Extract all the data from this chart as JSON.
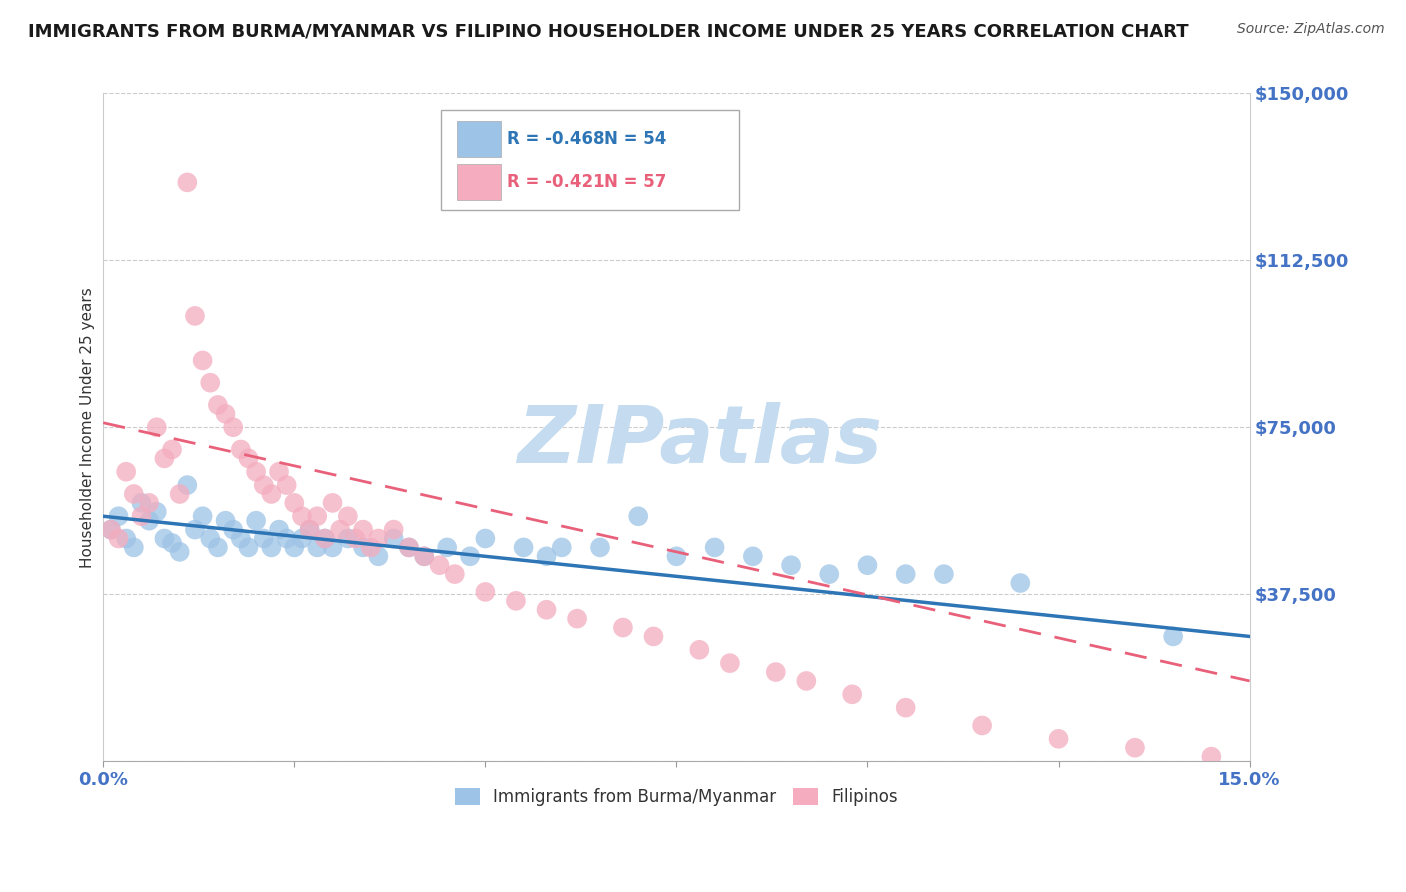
{
  "title": "IMMIGRANTS FROM BURMA/MYANMAR VS FILIPINO HOUSEHOLDER INCOME UNDER 25 YEARS CORRELATION CHART",
  "source_text": "Source: ZipAtlas.com",
  "ylabel": "Householder Income Under 25 years",
  "xlim": [
    0.0,
    0.15
  ],
  "ylim": [
    0,
    150000
  ],
  "yticks": [
    0,
    37500,
    75000,
    112500,
    150000
  ],
  "ytick_labels": [
    "",
    "$37,500",
    "$75,000",
    "$112,500",
    "$150,000"
  ],
  "legend_r1": "-0.468",
  "legend_n1": "54",
  "legend_r2": "-0.421",
  "legend_n2": "57",
  "color_blue": "#9DC3E6",
  "color_pink": "#F4ACBE",
  "color_blue_line": "#2E75B6",
  "color_pink_line": "#E8607A",
  "color_axis_label": "#4472C4",
  "watermark_color": "#C5DCF0",
  "grid_color": "#CCCCCC",
  "blue_x": [
    0.001,
    0.002,
    0.003,
    0.004,
    0.005,
    0.006,
    0.007,
    0.008,
    0.009,
    0.01,
    0.011,
    0.012,
    0.013,
    0.014,
    0.015,
    0.016,
    0.017,
    0.018,
    0.019,
    0.02,
    0.021,
    0.022,
    0.023,
    0.024,
    0.025,
    0.026,
    0.027,
    0.028,
    0.029,
    0.03,
    0.032,
    0.034,
    0.036,
    0.038,
    0.04,
    0.042,
    0.045,
    0.048,
    0.05,
    0.055,
    0.058,
    0.06,
    0.065,
    0.07,
    0.075,
    0.08,
    0.085,
    0.09,
    0.095,
    0.1,
    0.105,
    0.11,
    0.12,
    0.14
  ],
  "blue_y": [
    52000,
    55000,
    50000,
    48000,
    58000,
    54000,
    56000,
    50000,
    49000,
    47000,
    62000,
    52000,
    55000,
    50000,
    48000,
    54000,
    52000,
    50000,
    48000,
    54000,
    50000,
    48000,
    52000,
    50000,
    48000,
    50000,
    52000,
    48000,
    50000,
    48000,
    50000,
    48000,
    46000,
    50000,
    48000,
    46000,
    48000,
    46000,
    50000,
    48000,
    46000,
    48000,
    48000,
    55000,
    46000,
    48000,
    46000,
    44000,
    42000,
    44000,
    42000,
    42000,
    40000,
    28000
  ],
  "pink_x": [
    0.001,
    0.002,
    0.003,
    0.004,
    0.005,
    0.006,
    0.007,
    0.008,
    0.009,
    0.01,
    0.011,
    0.012,
    0.013,
    0.014,
    0.015,
    0.016,
    0.017,
    0.018,
    0.019,
    0.02,
    0.021,
    0.022,
    0.023,
    0.024,
    0.025,
    0.026,
    0.027,
    0.028,
    0.029,
    0.03,
    0.031,
    0.032,
    0.033,
    0.034,
    0.035,
    0.036,
    0.038,
    0.04,
    0.042,
    0.044,
    0.046,
    0.05,
    0.054,
    0.058,
    0.062,
    0.068,
    0.072,
    0.078,
    0.082,
    0.088,
    0.092,
    0.098,
    0.105,
    0.115,
    0.125,
    0.135,
    0.145
  ],
  "pink_y": [
    52000,
    50000,
    65000,
    60000,
    55000,
    58000,
    75000,
    68000,
    70000,
    60000,
    130000,
    100000,
    90000,
    85000,
    80000,
    78000,
    75000,
    70000,
    68000,
    65000,
    62000,
    60000,
    65000,
    62000,
    58000,
    55000,
    52000,
    55000,
    50000,
    58000,
    52000,
    55000,
    50000,
    52000,
    48000,
    50000,
    52000,
    48000,
    46000,
    44000,
    42000,
    38000,
    36000,
    34000,
    32000,
    30000,
    28000,
    25000,
    22000,
    20000,
    18000,
    15000,
    12000,
    8000,
    5000,
    3000,
    1000
  ],
  "blue_line_x": [
    0.0,
    0.15
  ],
  "blue_line_y": [
    55000,
    28000
  ],
  "pink_line_x": [
    0.0,
    0.15
  ],
  "pink_line_y": [
    76000,
    18000
  ]
}
